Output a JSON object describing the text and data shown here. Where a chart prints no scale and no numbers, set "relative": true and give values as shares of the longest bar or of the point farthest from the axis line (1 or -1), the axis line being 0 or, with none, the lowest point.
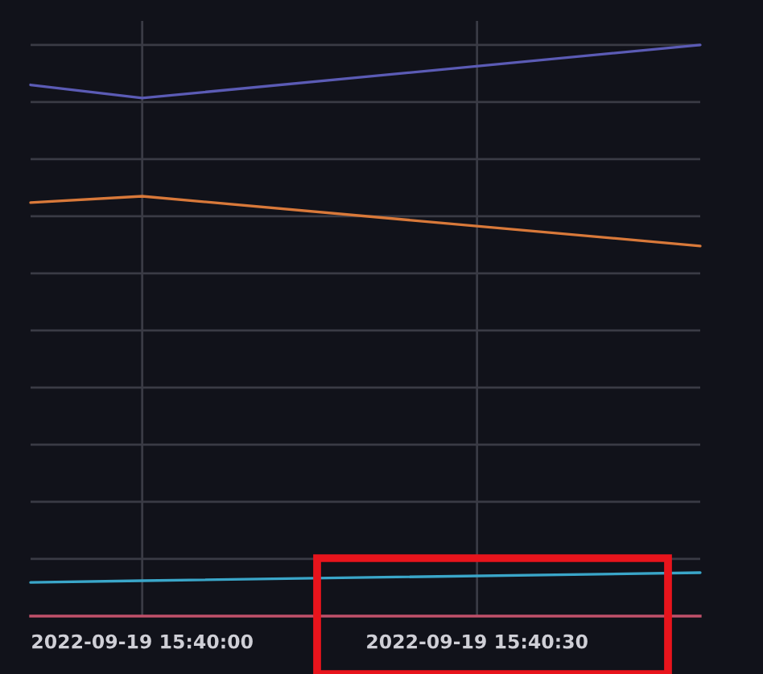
{
  "chart_data": {
    "type": "line",
    "relative": true,
    "x": [
      "2022-09-19T15:39:50",
      "2022-09-19T15:40:00",
      "2022-09-19T15:40:50"
    ],
    "xlim": [
      "2022-09-19T15:39:50",
      "2022-09-19T15:40:50"
    ],
    "xticks": [
      {
        "value": "2022-09-19T15:40:00",
        "label": "2022-09-19 15:40:00"
      },
      {
        "value": "2022-09-19T15:40:30",
        "label": "2022-09-19 15:40:30"
      }
    ],
    "series": [
      {
        "color": "#5b5bb5",
        "values": [
          0.93,
          0.907,
          1
        ]
      },
      {
        "color": "#d9793a",
        "values": [
          0.724,
          0.735,
          0.648
        ]
      },
      {
        "color": "#3aa6c9",
        "values": [
          0.059,
          0.062,
          0.076
        ]
      }
    ],
    "grid": true,
    "marker": "none",
    "line_style": "solid",
    "legend": false
  }
}
